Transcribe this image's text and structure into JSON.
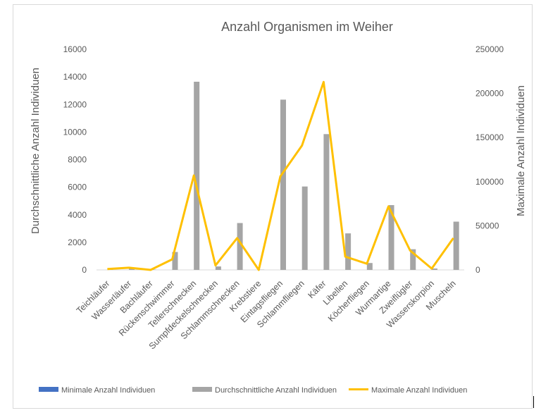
{
  "chart_data": {
    "type": "bar",
    "title": "Anzahl Organismen im Weiher",
    "ylabel": "Durchschnittliche Anzahl Individuen",
    "y2label": "Maximale Anzahl Individuen",
    "ylim": [
      0,
      16000
    ],
    "y2lim": [
      0,
      250000
    ],
    "yticks": [
      0,
      2000,
      4000,
      6000,
      8000,
      10000,
      12000,
      14000,
      16000
    ],
    "y2ticks": [
      0,
      50000,
      100000,
      150000,
      200000,
      250000
    ],
    "grid": false,
    "legend_position": "bottom",
    "categories": [
      "Teichläufer",
      "Wasserläufer",
      "Bachläufer",
      "Rückenschwimmer",
      "Tellerschnecken",
      "Sumpfdeckelschnecken",
      "Schlammschnecken",
      "Krebstiere",
      "Eintagsfliegen",
      "Schlammfliegen",
      "Käfer",
      "Libellen",
      "Köcherfliegen",
      "Wurmartige",
      "Zweiflügler",
      "Wasserskorpion",
      "Muscheln"
    ],
    "series": [
      {
        "name": "Minimale Anzahl Individuen",
        "type": "bar",
        "axis": "left",
        "color": "#4472c4",
        "values": [
          0,
          0,
          0,
          0,
          0,
          0,
          0,
          0,
          0,
          0,
          0,
          0,
          0,
          0,
          0,
          0,
          0
        ]
      },
      {
        "name": "Durchschnittliche Anzahl Individuen",
        "type": "bar",
        "axis": "left",
        "color": "#a5a5a5",
        "values": [
          30,
          80,
          20,
          1300,
          13650,
          250,
          3400,
          20,
          12350,
          6050,
          9850,
          2650,
          500,
          4700,
          1500,
          100,
          3500
        ]
      },
      {
        "name": "Maximale Anzahl Individuen",
        "type": "line",
        "axis": "right",
        "color": "#ffc000",
        "values": [
          1000,
          2500,
          0,
          12000,
          107000,
          5000,
          36000,
          0,
          106000,
          141000,
          213000,
          15000,
          7000,
          72000,
          22000,
          1500,
          36000
        ]
      }
    ]
  }
}
